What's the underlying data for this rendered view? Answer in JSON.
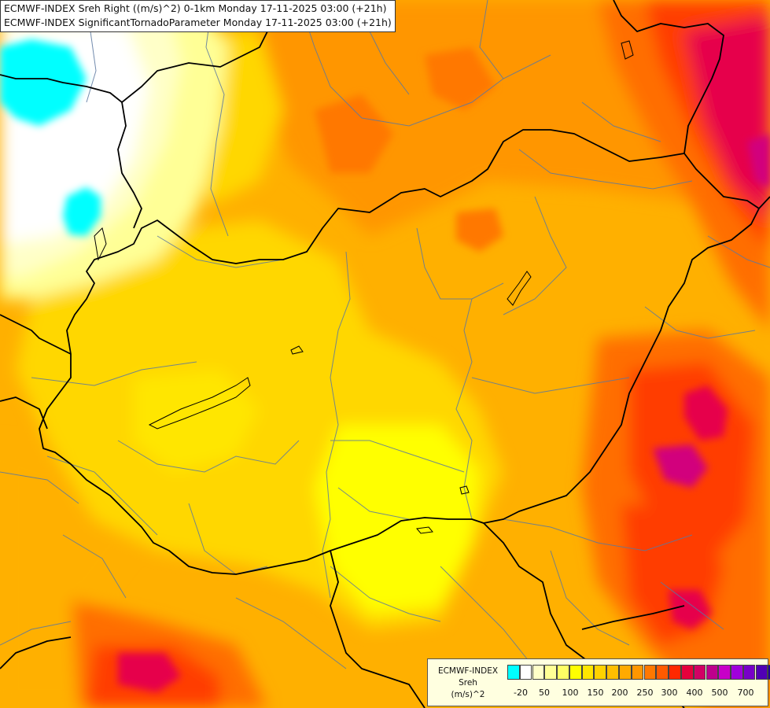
{
  "header": {
    "line1": "ECMWF-INDEX Sreh Right ((m/s)^2) 0-1km Monday 17-11-2025 03:00 (+21h)",
    "line2": "ECMWF-INDEX SignificantTornadoParameter Monday 17-11-2025 03:00 (+21h)"
  },
  "map": {
    "region": "Hungary and surrounding region",
    "parameter": "Sreh 0-1km",
    "colors": {
      "below_zero": "#00ffff",
      "low": "#ffffff",
      "pale": "#ffffc8",
      "light_yellow": "#ffff64",
      "yellow": "#ffff00",
      "gold": "#ffd700",
      "orange": "#ffb000",
      "dark_orange": "#ff9600",
      "red_orange": "#ff6e00",
      "red": "#ff3c00",
      "crimson": "#e6004b",
      "magenta": "#d2007d"
    }
  },
  "legend": {
    "title_lines": [
      "ECMWF-INDEX",
      "Sreh",
      "(m/s)^2"
    ],
    "colors": [
      "#00ffff",
      "#ffffff",
      "#ffffc8",
      "#ffff96",
      "#ffff64",
      "#ffff00",
      "#ffe600",
      "#ffd200",
      "#ffbe00",
      "#ffaa00",
      "#ff9600",
      "#ff7800",
      "#ff5a00",
      "#ff2800",
      "#e6003c",
      "#d20064",
      "#be008c",
      "#c800c8",
      "#a000dc",
      "#7800c8",
      "#5000b4",
      "#1e0096"
    ],
    "tick_labels": [
      "-20",
      "50",
      "100",
      "150",
      "200",
      "250",
      "300",
      "400",
      "500",
      "700"
    ]
  }
}
